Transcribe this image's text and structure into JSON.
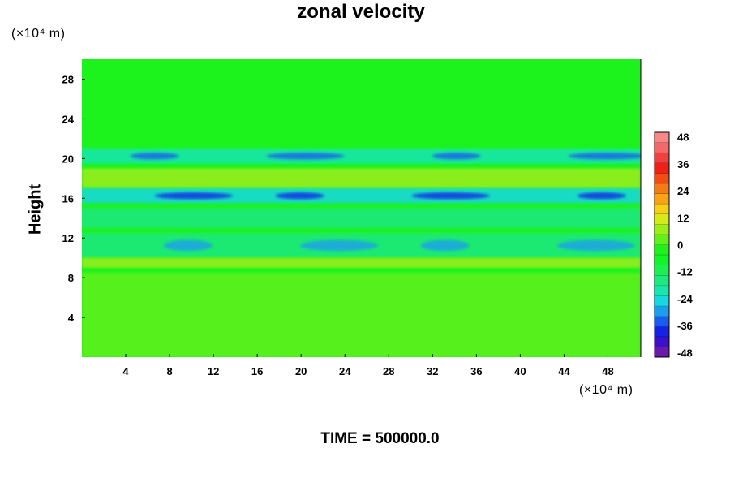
{
  "chart_data": {
    "type": "heatmap",
    "title": "zonal velocity",
    "ylabel": "Height",
    "xlabel": "",
    "x_unit_label": "(×10⁴ m)",
    "y_unit_label": "(×10⁴ m)",
    "xlim": [
      0,
      51
    ],
    "ylim": [
      0,
      30
    ],
    "x_ticks": [
      "4",
      "8",
      "12",
      "16",
      "20",
      "24",
      "28",
      "32",
      "36",
      "40",
      "44",
      "48"
    ],
    "y_ticks": [
      "4",
      "8",
      "12",
      "16",
      "20",
      "24",
      "28"
    ],
    "colorbar": {
      "range": [
        -50,
        50
      ],
      "tick_labels": [
        "48",
        "36",
        "24",
        "12",
        "0",
        "-12",
        "-24",
        "-36",
        "-48"
      ],
      "colors_bottom_to_top": [
        "#6a1aa8",
        "#3a10c8",
        "#1522e6",
        "#1a5cf2",
        "#1a9ef0",
        "#16d8e0",
        "#18e6b0",
        "#1ee880",
        "#1cf050",
        "#10f428",
        "#1ef21a",
        "#60f01a",
        "#9cee1a",
        "#d6ea18",
        "#f6d016",
        "#f8a414",
        "#f47c14",
        "#f04c14",
        "#ee2018",
        "#f04040",
        "#f46868",
        "#f88888"
      ]
    },
    "bands": [
      {
        "y_range": [
          21.5,
          30
        ],
        "value": -4,
        "description": "uniform"
      },
      {
        "y_range": [
          19.5,
          21
        ],
        "value": -20,
        "min": -36
      },
      {
        "y_range": [
          17,
          19
        ],
        "value": 6
      },
      {
        "y_range": [
          15.5,
          17
        ],
        "value": -24,
        "min": -40
      },
      {
        "y_range": [
          13,
          15
        ],
        "value": -14
      },
      {
        "y_range": [
          10,
          12.5
        ],
        "value": -18,
        "min": -28
      },
      {
        "y_range": [
          9,
          10
        ],
        "value": 8
      },
      {
        "y_range": [
          0,
          8.5
        ],
        "value": 0
      }
    ]
  },
  "footer": {
    "time_label": "TIME = 500000.0"
  }
}
